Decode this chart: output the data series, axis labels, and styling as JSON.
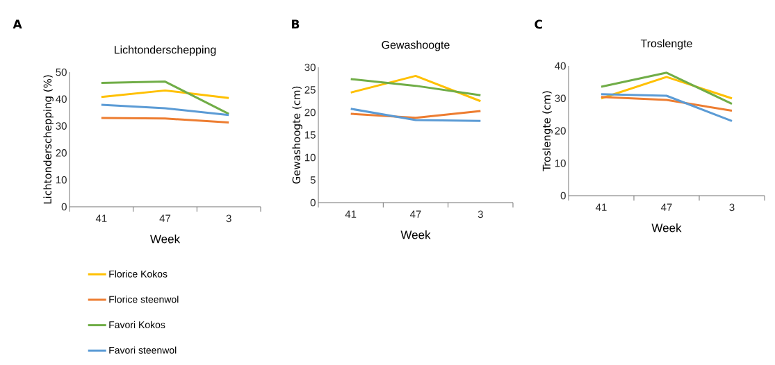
{
  "chart_data": [
    {
      "type": "line",
      "title": "Lichtonderschepping",
      "xlabel": "Week",
      "ylabel": "Lichtonderschepping (%)",
      "annotations": [
        "A"
      ],
      "categories": [
        "41",
        "47",
        "3"
      ],
      "ylim": [
        0,
        50
      ],
      "yticks": [
        0,
        10,
        20,
        30,
        40,
        50
      ],
      "legend": "bottom",
      "grid": false,
      "series": [
        {
          "name": "Florice Kokos",
          "color": "#ffc000",
          "values": [
            40.8,
            43.2,
            40.4
          ]
        },
        {
          "name": "Florice steenwol",
          "color": "#ed7d31",
          "values": [
            33.0,
            32.8,
            31.3
          ]
        },
        {
          "name": "Favori Kokos",
          "color": "#70ad47",
          "values": [
            46.0,
            46.5,
            34.5
          ]
        },
        {
          "name": "Favori steenwol",
          "color": "#5b9bd5",
          "values": [
            37.9,
            36.6,
            34.1
          ]
        }
      ]
    },
    {
      "type": "line",
      "title": "Gewashoogte",
      "xlabel": "Week",
      "ylabel": "Gewashoogte (cm)",
      "annotations": [
        "B"
      ],
      "categories": [
        "41",
        "47",
        "3"
      ],
      "ylim": [
        0,
        30
      ],
      "yticks": [
        0,
        5,
        10,
        15,
        20,
        25,
        30
      ],
      "grid": false,
      "series": [
        {
          "color": "#ffc000",
          "values": [
            24.4,
            28.1,
            22.5
          ]
        },
        {
          "color": "#ed7d31",
          "values": [
            19.7,
            18.8,
            20.3
          ]
        },
        {
          "color": "#70ad47",
          "values": [
            27.4,
            25.9,
            23.8
          ]
        },
        {
          "color": "#5b9bd5",
          "values": [
            20.8,
            18.3,
            18.1
          ]
        }
      ]
    },
    {
      "type": "line",
      "title": "Troslengte",
      "xlabel": "Week",
      "ylabel": "Troslengte (cm)",
      "annotations": [
        "C"
      ],
      "categories": [
        "41",
        "47",
        "3"
      ],
      "ylim": [
        0,
        40
      ],
      "yticks": [
        0,
        10,
        20,
        30,
        40
      ],
      "grid": false,
      "series": [
        {
          "color": "#ffc000",
          "values": [
            30.0,
            36.6,
            30.0
          ]
        },
        {
          "color": "#ed7d31",
          "values": [
            30.4,
            29.5,
            26.2
          ]
        },
        {
          "color": "#70ad47",
          "values": [
            33.6,
            37.9,
            28.3
          ]
        },
        {
          "color": "#5b9bd5",
          "values": [
            31.3,
            30.8,
            23.0
          ]
        }
      ]
    }
  ]
}
